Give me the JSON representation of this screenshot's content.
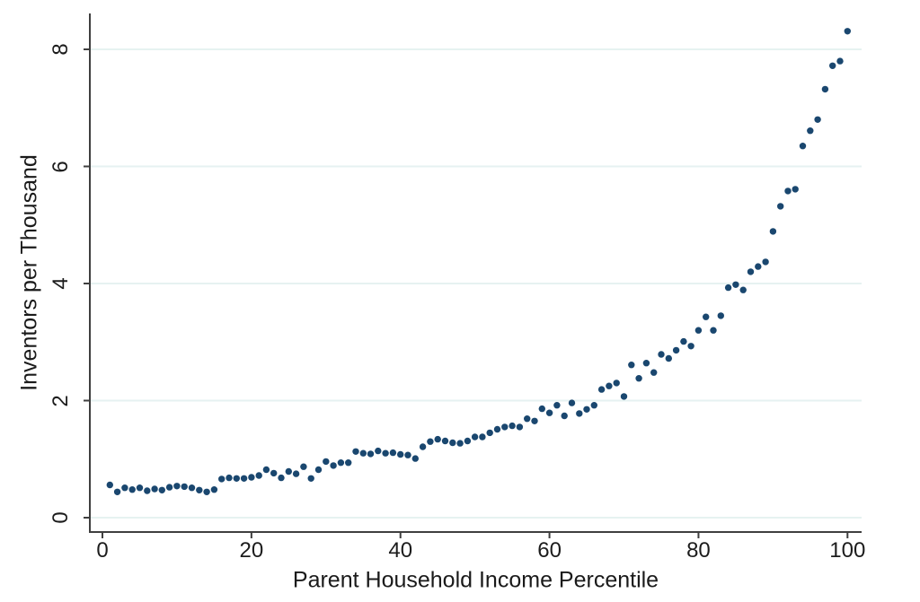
{
  "chart_data": {
    "type": "scatter",
    "title": "",
    "xlabel": "Parent Household Income Percentile",
    "ylabel": "Inventors per Thousand",
    "xlim": [
      -2,
      102
    ],
    "ylim": [
      -0.25,
      8.6
    ],
    "x_ticks": [
      0,
      20,
      40,
      60,
      80,
      100
    ],
    "y_ticks": [
      0,
      2,
      4,
      6,
      8
    ],
    "grid": "horizontal-only",
    "legend": "none",
    "point_color": "#1a476f",
    "gridline_color": "#e6f2f1",
    "axis_color": "#3f3f3f",
    "background_color": "#ffffff",
    "series": [
      {
        "name": "Inventors per Thousand",
        "x": [
          1,
          2,
          3,
          4,
          5,
          6,
          7,
          8,
          9,
          10,
          11,
          12,
          13,
          14,
          15,
          16,
          17,
          18,
          19,
          20,
          21,
          22,
          23,
          24,
          25,
          26,
          27,
          28,
          29,
          30,
          31,
          32,
          33,
          34,
          35,
          36,
          37,
          38,
          39,
          40,
          41,
          42,
          43,
          44,
          45,
          46,
          47,
          48,
          49,
          50,
          51,
          52,
          53,
          54,
          55,
          56,
          57,
          58,
          59,
          60,
          61,
          62,
          63,
          64,
          65,
          66,
          67,
          68,
          69,
          70,
          71,
          72,
          73,
          74,
          75,
          76,
          77,
          78,
          79,
          80,
          81,
          82,
          83,
          84,
          85,
          86,
          87,
          88,
          89,
          90,
          91,
          92,
          93,
          94,
          95,
          96,
          97,
          98,
          99,
          100
        ],
        "y": [
          0.56,
          0.44,
          0.51,
          0.48,
          0.51,
          0.46,
          0.49,
          0.47,
          0.52,
          0.54,
          0.53,
          0.51,
          0.47,
          0.44,
          0.48,
          0.66,
          0.68,
          0.67,
          0.67,
          0.69,
          0.72,
          0.82,
          0.76,
          0.68,
          0.79,
          0.75,
          0.87,
          0.67,
          0.82,
          0.96,
          0.89,
          0.94,
          0.94,
          1.13,
          1.1,
          1.09,
          1.14,
          1.1,
          1.11,
          1.08,
          1.07,
          1.01,
          1.21,
          1.3,
          1.34,
          1.31,
          1.28,
          1.27,
          1.31,
          1.38,
          1.38,
          1.45,
          1.51,
          1.55,
          1.57,
          1.55,
          1.69,
          1.65,
          1.86,
          1.79,
          1.92,
          1.74,
          1.96,
          1.78,
          1.85,
          1.92,
          2.19,
          2.25,
          2.3,
          2.07,
          2.61,
          2.38,
          2.64,
          2.48,
          2.79,
          2.72,
          2.86,
          3.01,
          2.93,
          3.2,
          3.43,
          3.2,
          3.45,
          3.93,
          3.98,
          3.89,
          4.2,
          4.29,
          4.37,
          4.89,
          5.32,
          5.58,
          5.61,
          6.35,
          6.61,
          6.8,
          7.32,
          7.72,
          7.8,
          8.31
        ]
      }
    ]
  }
}
